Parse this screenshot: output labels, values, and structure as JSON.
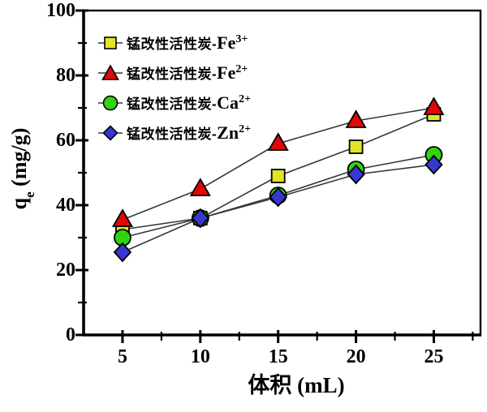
{
  "chart_data": {
    "type": "line",
    "title": "",
    "xlabel": "体积 (mL)",
    "ylabel": "qe (mg/g)",
    "ylabel_parts": {
      "base": "q",
      "sub": "e",
      "unit": " (mg/g)"
    },
    "xlim": [
      2.5,
      28
    ],
    "ylim": [
      0,
      100
    ],
    "x": [
      5,
      10,
      15,
      20,
      25
    ],
    "x_ticks": [
      "5",
      "10",
      "15",
      "20",
      "25"
    ],
    "x_minor_ticks": [
      7.5,
      12.5,
      17.5,
      22.5,
      27.5
    ],
    "y_ticks": [
      "0",
      "20",
      "40",
      "60",
      "80",
      "100"
    ],
    "y_minor_ticks": [
      10,
      30,
      50,
      70,
      90
    ],
    "grid": false,
    "legend_position": "inside-top-left",
    "line_color": "#34383c",
    "marker_edge_color": "#000000",
    "axis_color": "#000000",
    "series": [
      {
        "name": "锰改性活性炭-Fe3+",
        "legend_prefix": "锰改性活性炭-",
        "ion": "Fe",
        "ion_charge": "3+",
        "marker": "square",
        "color": "#e2e427",
        "values": [
          32.5,
          36,
          49,
          58,
          68
        ]
      },
      {
        "name": "锰改性活性炭-Fe2+",
        "legend_prefix": "锰改性活性炭-",
        "ion": "Fe",
        "ion_charge": "2+",
        "marker": "triangle",
        "color": "#e00808",
        "values": [
          35.5,
          45,
          59,
          66,
          70
        ]
      },
      {
        "name": "锰改性活性炭-Ca2+",
        "legend_prefix": "锰改性活性炭-",
        "ion": "Ca",
        "ion_charge": "2+",
        "marker": "circle",
        "color": "#2fd30f",
        "values": [
          30,
          36,
          43,
          51,
          55.5
        ]
      },
      {
        "name": "锰改性活性炭-Zn2+",
        "legend_prefix": "锰改性活性炭-",
        "ion": "Zn",
        "ion_charge": "2+",
        "marker": "diamond",
        "color": "#3737d2",
        "values": [
          25.5,
          36,
          42.5,
          49.5,
          52.5
        ]
      }
    ]
  }
}
